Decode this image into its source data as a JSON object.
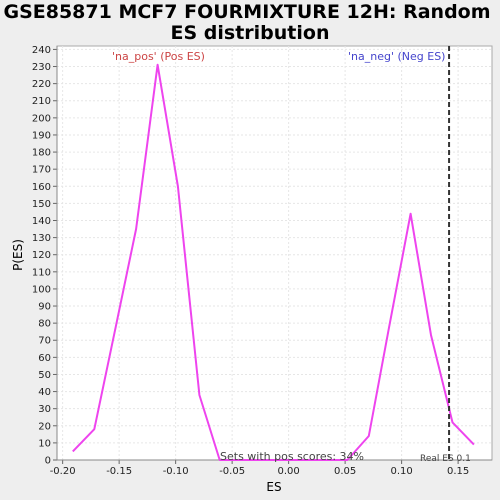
{
  "chart_data": {
    "type": "line",
    "title_line1": "GSE85871 MCF7 FOURMIXTURE 12H: Random",
    "title_line2": "ES distribution",
    "xlabel": "ES",
    "ylabel": "P(ES)",
    "xlim": [
      -0.205,
      0.18
    ],
    "ylim": [
      0,
      242
    ],
    "x_ticks": [
      "-0.20",
      "-0.15",
      "-0.10",
      "-0.05",
      "0.00",
      "0.05",
      "0.10",
      "0.15"
    ],
    "x_tick_values": [
      -0.2,
      -0.15,
      -0.1,
      -0.05,
      0.0,
      0.05,
      0.1,
      0.15
    ],
    "y_ticks": [
      0,
      10,
      20,
      30,
      40,
      50,
      60,
      70,
      80,
      90,
      100,
      110,
      120,
      130,
      140,
      150,
      160,
      170,
      180,
      190,
      200,
      210,
      220,
      230,
      240
    ],
    "grid": true,
    "series": [
      {
        "color": "#ee44ee",
        "x": [
          -0.191,
          -0.172,
          -0.153,
          -0.135,
          -0.116,
          -0.098,
          -0.079,
          -0.061,
          0.052,
          0.071,
          0.089,
          0.108,
          0.126,
          0.145,
          0.164
        ],
        "y": [
          5,
          18,
          78,
          135,
          231,
          160,
          38,
          0,
          0,
          14,
          78,
          144,
          73,
          22,
          9
        ]
      }
    ],
    "real_es": 0.142,
    "annotations": {
      "na_pos": "'na_pos' (Pos ES)",
      "na_neg": "'na_neg' (Neg ES)",
      "sets_with_pos": "Sets with pos scores: 34%",
      "real_es_label": "Real ES 0.1"
    },
    "colors": {
      "na_pos": "#cc4444",
      "na_neg": "#4444cc",
      "line": "#ee44ee",
      "real_es_line": "#333333"
    }
  }
}
